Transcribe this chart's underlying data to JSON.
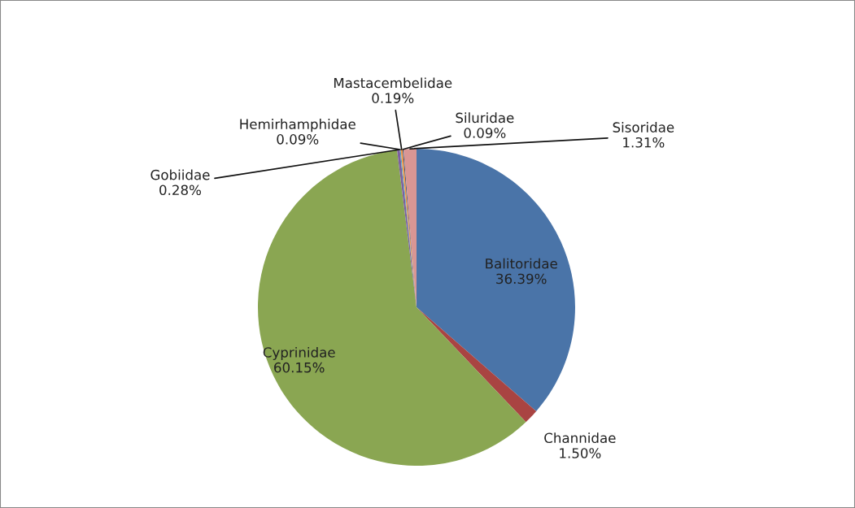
{
  "chart_data": {
    "type": "pie",
    "categories": [
      "Balitoridae",
      "Channidae",
      "Cyprinidae",
      "Gobiidae",
      "Hemirhamphidae",
      "Mastacembelidae",
      "Siluridae",
      "Sisoridae"
    ],
    "values": [
      36.39,
      1.5,
      60.15,
      0.28,
      0.09,
      0.19,
      0.09,
      1.31
    ],
    "value_labels": [
      "36.39%",
      "1.50%",
      "60.15%",
      "0.28%",
      "0.09%",
      "0.19%",
      "0.09%",
      "1.31%"
    ],
    "colors": [
      "#4a74a8",
      "#a94442",
      "#8aa652",
      "#7d60a0",
      "#4aacc6",
      "#f79646",
      "#2c4d75",
      "#d99694"
    ],
    "legend": false
  }
}
